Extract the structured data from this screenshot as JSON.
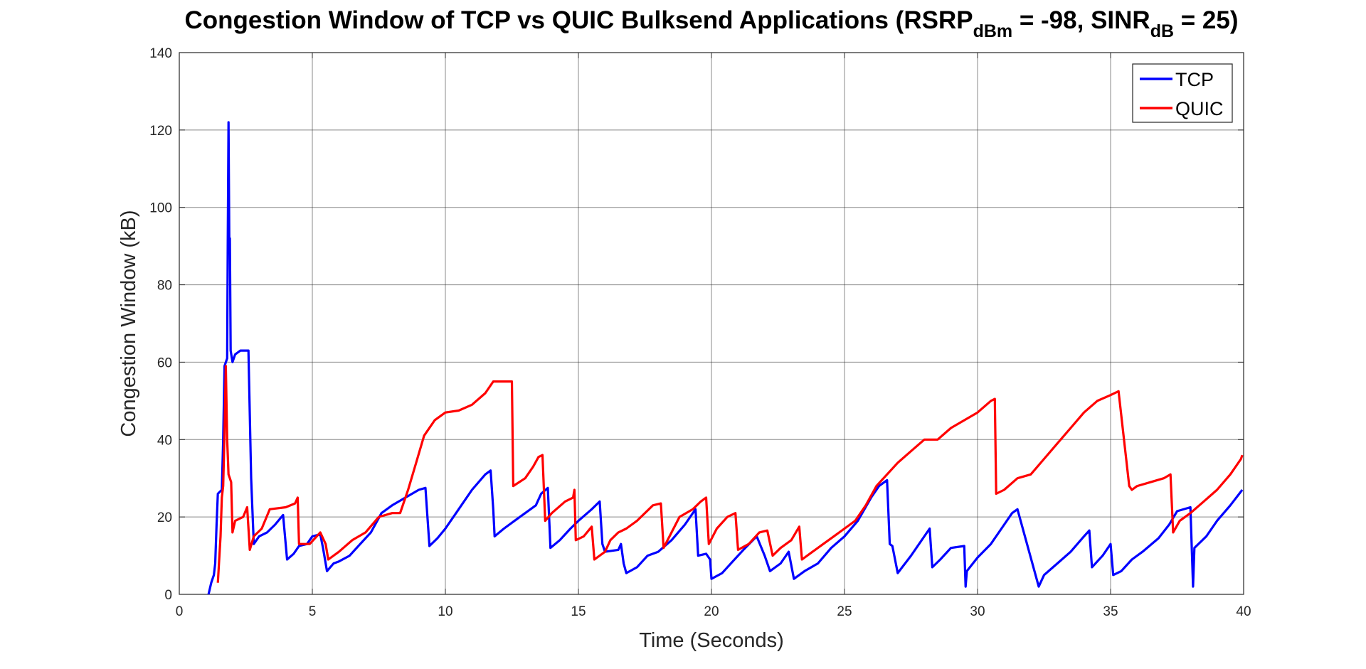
{
  "chart_data": {
    "type": "line",
    "title_parts": {
      "a": "Congestion Window of TCP vs QUIC Bulksend Applications (RSRP",
      "sub1": "dBm",
      "b": " = -98, SINR",
      "sub2": "dB",
      "c": " = 25)"
    },
    "xlabel": "Time (Seconds)",
    "ylabel": "Congestion Window (kB)",
    "xlim": [
      0,
      40
    ],
    "ylim": [
      0,
      140
    ],
    "xticks": [
      0,
      5,
      10,
      15,
      20,
      25,
      30,
      35,
      40
    ],
    "yticks": [
      0,
      20,
      40,
      60,
      80,
      100,
      120,
      140
    ],
    "grid": true,
    "legend_position": "top-right",
    "series": [
      {
        "name": "TCP",
        "color": "#0000ff",
        "points": [
          [
            1.1,
            0
          ],
          [
            1.2,
            3
          ],
          [
            1.3,
            5
          ],
          [
            1.35,
            8
          ],
          [
            1.4,
            18
          ],
          [
            1.45,
            26
          ],
          [
            1.6,
            27
          ],
          [
            1.65,
            40
          ],
          [
            1.7,
            59
          ],
          [
            1.8,
            61
          ],
          [
            1.82,
            90
          ],
          [
            1.85,
            122
          ],
          [
            1.88,
            91
          ],
          [
            1.9,
            92
          ],
          [
            1.93,
            63
          ],
          [
            2.0,
            60
          ],
          [
            2.1,
            62
          ],
          [
            2.3,
            63
          ],
          [
            2.6,
            63
          ],
          [
            2.7,
            30
          ],
          [
            2.8,
            13
          ],
          [
            3.0,
            15
          ],
          [
            3.3,
            16
          ],
          [
            3.6,
            18
          ],
          [
            3.9,
            20.5
          ],
          [
            4.05,
            9
          ],
          [
            4.3,
            10.5
          ],
          [
            4.5,
            12.5
          ],
          [
            4.8,
            13
          ],
          [
            5.0,
            15
          ],
          [
            5.3,
            15.5
          ],
          [
            5.4,
            12
          ],
          [
            5.55,
            6
          ],
          [
            5.8,
            8
          ],
          [
            6.0,
            8.5
          ],
          [
            6.4,
            10
          ],
          [
            6.8,
            13
          ],
          [
            7.2,
            16
          ],
          [
            7.6,
            21
          ],
          [
            8.0,
            23
          ],
          [
            8.5,
            25
          ],
          [
            9.0,
            27
          ],
          [
            9.25,
            27.5
          ],
          [
            9.4,
            12.5
          ],
          [
            9.7,
            14.5
          ],
          [
            10.0,
            17
          ],
          [
            10.5,
            22
          ],
          [
            11.0,
            27
          ],
          [
            11.5,
            31
          ],
          [
            11.7,
            32
          ],
          [
            11.8,
            22
          ],
          [
            11.85,
            15
          ],
          [
            12.2,
            17
          ],
          [
            12.6,
            19
          ],
          [
            13.0,
            21
          ],
          [
            13.4,
            23
          ],
          [
            13.6,
            26
          ],
          [
            13.85,
            27.5
          ],
          [
            13.95,
            12
          ],
          [
            14.3,
            14
          ],
          [
            14.7,
            17
          ],
          [
            15.0,
            19
          ],
          [
            15.5,
            22
          ],
          [
            15.8,
            24
          ],
          [
            15.9,
            13
          ],
          [
            16.0,
            11
          ],
          [
            16.5,
            11.5
          ],
          [
            16.6,
            13
          ],
          [
            16.7,
            8
          ],
          [
            16.8,
            5.5
          ],
          [
            17.2,
            7
          ],
          [
            17.6,
            10
          ],
          [
            18.0,
            11
          ],
          [
            18.5,
            14
          ],
          [
            19.0,
            18
          ],
          [
            19.4,
            22
          ],
          [
            19.5,
            10
          ],
          [
            19.8,
            10.5
          ],
          [
            19.95,
            9
          ],
          [
            20.0,
            4
          ],
          [
            20.4,
            5.5
          ],
          [
            20.8,
            8.5
          ],
          [
            21.2,
            11.5
          ],
          [
            21.7,
            15
          ],
          [
            22.0,
            10
          ],
          [
            22.2,
            6
          ],
          [
            22.6,
            8
          ],
          [
            22.9,
            11
          ],
          [
            23.1,
            4
          ],
          [
            23.5,
            6
          ],
          [
            24.0,
            8
          ],
          [
            24.5,
            12
          ],
          [
            25.0,
            15
          ],
          [
            25.5,
            19
          ],
          [
            26.0,
            25
          ],
          [
            26.3,
            28
          ],
          [
            26.6,
            29.5
          ],
          [
            26.7,
            13
          ],
          [
            26.8,
            12.5
          ],
          [
            27.0,
            5.5
          ],
          [
            27.5,
            10
          ],
          [
            28.0,
            15
          ],
          [
            28.2,
            17
          ],
          [
            28.3,
            7
          ],
          [
            28.6,
            9
          ],
          [
            29.0,
            12
          ],
          [
            29.5,
            12.5
          ],
          [
            29.55,
            2
          ],
          [
            29.6,
            6
          ],
          [
            30.0,
            9.5
          ],
          [
            30.5,
            13
          ],
          [
            31.0,
            18
          ],
          [
            31.3,
            21
          ],
          [
            31.5,
            22
          ],
          [
            32.3,
            2
          ],
          [
            32.5,
            5
          ],
          [
            33.0,
            8
          ],
          [
            33.5,
            11
          ],
          [
            34.0,
            15
          ],
          [
            34.2,
            16.5
          ],
          [
            34.3,
            7
          ],
          [
            34.7,
            10
          ],
          [
            35.0,
            13
          ],
          [
            35.1,
            5
          ],
          [
            35.4,
            6
          ],
          [
            35.8,
            9
          ],
          [
            36.2,
            11
          ],
          [
            36.8,
            14.5
          ],
          [
            37.2,
            18
          ],
          [
            37.5,
            21.5
          ],
          [
            38.0,
            22.5
          ],
          [
            38.1,
            2
          ],
          [
            38.15,
            12
          ],
          [
            38.6,
            15
          ],
          [
            39.0,
            19
          ],
          [
            39.5,
            23
          ],
          [
            39.95,
            27
          ]
        ]
      },
      {
        "name": "QUIC",
        "color": "#ff0000",
        "points": [
          [
            1.45,
            3
          ],
          [
            1.55,
            15
          ],
          [
            1.6,
            25
          ],
          [
            1.65,
            28
          ],
          [
            1.7,
            42
          ],
          [
            1.75,
            59
          ],
          [
            1.8,
            40
          ],
          [
            1.85,
            31
          ],
          [
            1.9,
            30
          ],
          [
            1.95,
            29
          ],
          [
            2.0,
            16
          ],
          [
            2.1,
            19
          ],
          [
            2.4,
            20
          ],
          [
            2.55,
            22.5
          ],
          [
            2.65,
            11.5
          ],
          [
            2.8,
            15
          ],
          [
            3.1,
            17
          ],
          [
            3.4,
            22
          ],
          [
            4.0,
            22.5
          ],
          [
            4.35,
            23.5
          ],
          [
            4.45,
            25
          ],
          [
            4.5,
            13
          ],
          [
            4.9,
            13
          ],
          [
            5.3,
            16
          ],
          [
            5.5,
            13
          ],
          [
            5.6,
            9
          ],
          [
            6.0,
            11
          ],
          [
            6.5,
            14
          ],
          [
            7.0,
            16
          ],
          [
            7.5,
            20
          ],
          [
            8.0,
            21
          ],
          [
            8.3,
            21
          ],
          [
            8.6,
            27
          ],
          [
            8.9,
            34
          ],
          [
            9.2,
            41
          ],
          [
            9.6,
            45
          ],
          [
            10.0,
            47
          ],
          [
            10.5,
            47.5
          ],
          [
            11.0,
            49
          ],
          [
            11.5,
            52
          ],
          [
            11.8,
            55
          ],
          [
            12.5,
            55
          ],
          [
            12.55,
            28
          ],
          [
            13.0,
            30
          ],
          [
            13.3,
            33
          ],
          [
            13.5,
            35.5
          ],
          [
            13.65,
            36
          ],
          [
            13.75,
            19
          ],
          [
            14.0,
            21
          ],
          [
            14.5,
            24
          ],
          [
            14.8,
            25
          ],
          [
            14.85,
            27
          ],
          [
            14.9,
            14
          ],
          [
            15.2,
            15
          ],
          [
            15.5,
            17.5
          ],
          [
            15.6,
            9
          ],
          [
            16.0,
            11
          ],
          [
            16.2,
            14
          ],
          [
            16.5,
            16
          ],
          [
            16.8,
            17
          ],
          [
            17.2,
            19
          ],
          [
            17.8,
            23
          ],
          [
            18.1,
            23.5
          ],
          [
            18.2,
            12
          ],
          [
            18.5,
            16
          ],
          [
            18.8,
            20
          ],
          [
            19.3,
            22
          ],
          [
            19.6,
            24
          ],
          [
            19.8,
            25
          ],
          [
            19.9,
            13
          ],
          [
            20.2,
            17
          ],
          [
            20.6,
            20
          ],
          [
            20.9,
            21
          ],
          [
            21.0,
            11.5
          ],
          [
            21.4,
            13
          ],
          [
            21.8,
            16
          ],
          [
            22.1,
            16.5
          ],
          [
            22.3,
            10
          ],
          [
            22.6,
            12
          ],
          [
            23.0,
            14
          ],
          [
            23.3,
            17.5
          ],
          [
            23.4,
            9
          ],
          [
            23.8,
            11
          ],
          [
            24.2,
            13
          ],
          [
            24.6,
            15
          ],
          [
            25.0,
            17
          ],
          [
            25.4,
            19
          ],
          [
            25.8,
            23
          ],
          [
            26.2,
            28
          ],
          [
            26.6,
            31
          ],
          [
            27.0,
            34
          ],
          [
            27.5,
            37
          ],
          [
            28.0,
            40
          ],
          [
            28.5,
            40
          ],
          [
            29.0,
            43
          ],
          [
            29.5,
            45
          ],
          [
            30.0,
            47
          ],
          [
            30.5,
            50
          ],
          [
            30.65,
            50.5
          ],
          [
            30.7,
            26
          ],
          [
            31.0,
            27
          ],
          [
            31.5,
            30
          ],
          [
            32.0,
            31
          ],
          [
            32.5,
            35
          ],
          [
            33.0,
            39
          ],
          [
            33.5,
            43
          ],
          [
            34.0,
            47
          ],
          [
            34.5,
            50
          ],
          [
            35.0,
            51.5
          ],
          [
            35.3,
            52.5
          ],
          [
            35.7,
            28
          ],
          [
            35.8,
            27
          ],
          [
            36.0,
            28
          ],
          [
            36.5,
            29
          ],
          [
            37.0,
            30
          ],
          [
            37.25,
            31
          ],
          [
            37.35,
            16
          ],
          [
            37.6,
            19
          ],
          [
            38.0,
            21
          ],
          [
            38.5,
            24
          ],
          [
            39.0,
            27
          ],
          [
            39.5,
            31
          ],
          [
            39.9,
            35
          ],
          [
            39.95,
            36
          ]
        ]
      }
    ]
  }
}
